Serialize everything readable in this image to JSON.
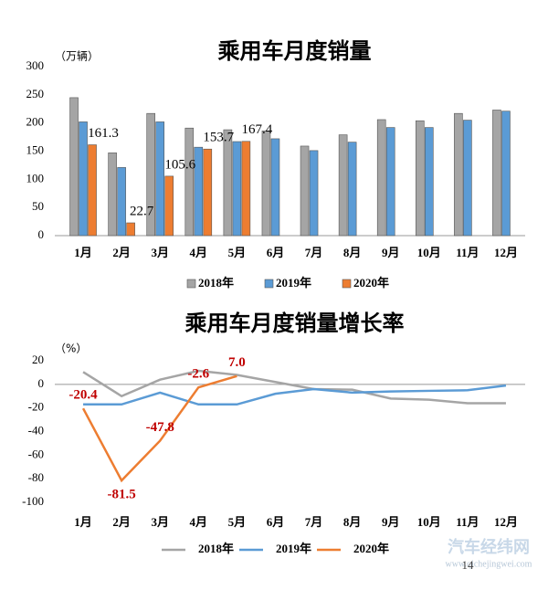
{
  "chart_data": [
    {
      "type": "bar",
      "title": "乘用车月度销量",
      "y_label": "（万辆）",
      "categories": [
        "1月",
        "2月",
        "3月",
        "4月",
        "5月",
        "6月",
        "7月",
        "8月",
        "9月",
        "10月",
        "11月",
        "12月"
      ],
      "series": [
        {
          "name": "2018年",
          "color": "#a5a5a5",
          "values": [
            245,
            147,
            217,
            191,
            188,
            186,
            159,
            179,
            206,
            204,
            217,
            223
          ]
        },
        {
          "name": "2019年",
          "color": "#5b9bd5",
          "values": [
            202,
            121,
            202,
            157,
            167,
            172,
            151,
            166,
            192,
            192,
            205,
            221
          ]
        },
        {
          "name": "2020年",
          "color": "#ed7d31",
          "values": [
            161.3,
            22.7,
            105.6,
            153.7,
            167.4,
            null,
            null,
            null,
            null,
            null,
            null,
            null
          ]
        }
      ],
      "ylim": [
        0,
        300
      ],
      "yticks": [
        0,
        50,
        100,
        150,
        200,
        250,
        300
      ],
      "legend": "bottom"
    },
    {
      "type": "line",
      "title": "乘用车月度销量增长率",
      "y_label": "（%）",
      "categories": [
        "1月",
        "2月",
        "3月",
        "4月",
        "5月",
        "6月",
        "7月",
        "8月",
        "9月",
        "10月",
        "11月",
        "12月"
      ],
      "series": [
        {
          "name": "2018年",
          "color": "#a5a5a5",
          "values": [
            10.5,
            -10,
            4,
            11.5,
            8,
            2,
            -4,
            -4.5,
            -12,
            -13,
            -16,
            -16
          ]
        },
        {
          "name": "2019年",
          "color": "#5b9bd5",
          "values": [
            -17,
            -17,
            -7,
            -17,
            -17,
            -8,
            -4,
            -7,
            -6,
            -5.5,
            -5,
            -1
          ]
        },
        {
          "name": "2020年",
          "color": "#ed7d31",
          "values": [
            -20.4,
            -81.5,
            -47.8,
            -2.6,
            7.0,
            null,
            null,
            null,
            null,
            null,
            null,
            null
          ],
          "value_labels": [
            "-20.4",
            "-81.5",
            "-47.8",
            "-2.6",
            "7.0",
            null,
            null,
            null,
            null,
            null,
            null,
            null
          ],
          "label_color": "#c00000"
        }
      ],
      "ylim": [
        -100,
        20
      ],
      "yticks": [
        -100,
        -80,
        -60,
        -40,
        -20,
        0,
        20
      ],
      "legend": "bottom"
    }
  ],
  "watermark": {
    "brand": "汽车经纬网",
    "url": "www.qichejingwei.com"
  },
  "page_number": "14"
}
